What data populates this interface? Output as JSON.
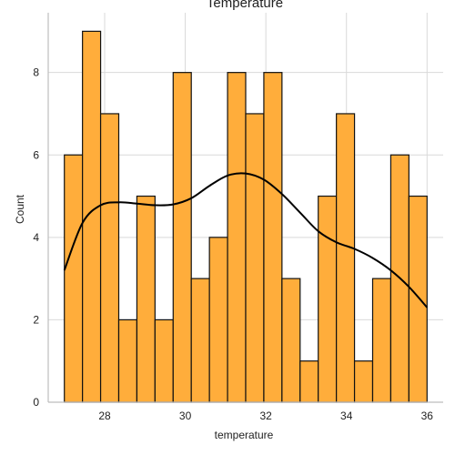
{
  "chart_data": {
    "type": "histogram",
    "title": "Temperature",
    "xlabel": "temperature",
    "ylabel": "Count",
    "xlim": [
      26.6,
      36.4
    ],
    "ylim": [
      0,
      9.45
    ],
    "bin_edges": [
      27.0,
      27.45,
      27.9,
      28.35,
      28.8,
      29.25,
      29.7,
      30.15,
      30.6,
      31.05,
      31.5,
      31.95,
      32.4,
      32.85,
      33.3,
      33.75,
      34.2,
      34.65,
      35.1,
      35.55,
      36.0
    ],
    "counts": [
      6,
      9,
      7,
      2,
      5,
      2,
      8,
      3,
      4,
      8,
      7,
      8,
      3,
      1,
      5,
      7,
      1,
      3,
      6,
      5
    ],
    "kde": {
      "x": [
        27.0,
        27.45,
        27.9,
        28.35,
        28.8,
        29.25,
        29.7,
        30.15,
        30.6,
        31.05,
        31.5,
        31.95,
        32.4,
        32.85,
        33.3,
        33.75,
        34.2,
        34.65,
        35.1,
        35.55,
        36.0
      ],
      "y": [
        3.2,
        4.35,
        4.78,
        4.85,
        4.82,
        4.78,
        4.8,
        4.95,
        5.25,
        5.5,
        5.55,
        5.4,
        5.05,
        4.6,
        4.15,
        3.88,
        3.72,
        3.5,
        3.2,
        2.8,
        2.3
      ]
    },
    "x_ticks": [
      28,
      30,
      32,
      34,
      36
    ],
    "y_ticks": [
      0,
      2,
      4,
      6,
      8
    ],
    "grid": true,
    "bar_color": "#ffad3b",
    "edge_color": "#111111",
    "kde_color": "#000000"
  }
}
